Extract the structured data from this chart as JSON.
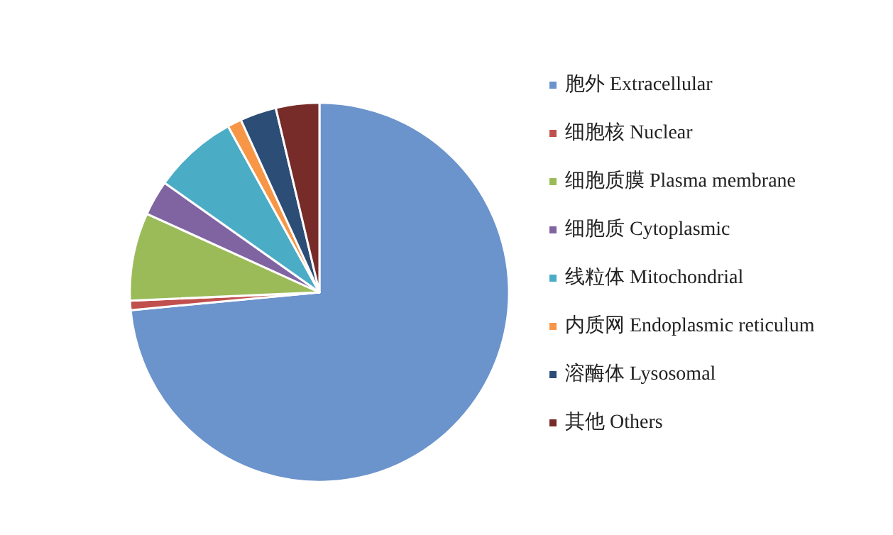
{
  "chart_data": {
    "type": "pie",
    "categories": [
      "胞外 Extracellular",
      "细胞核 Nuclear",
      "细胞质膜 Plasma membrane",
      "细胞质 Cytoplasmic",
      "线粒体 Mitochondrial",
      "内质网 Endoplasmic reticulum",
      "溶酶体 Lysosomal",
      "其他 Others"
    ],
    "values": [
      73.5,
      0.8,
      7.5,
      3,
      7.2,
      1.2,
      3.1,
      3.7
    ],
    "colors": [
      "#6b93cc",
      "#c0504d",
      "#9bbb59",
      "#8064a2",
      "#4bacc6",
      "#f79646",
      "#2c4d75",
      "#772c2a"
    ],
    "legend": "right"
  }
}
